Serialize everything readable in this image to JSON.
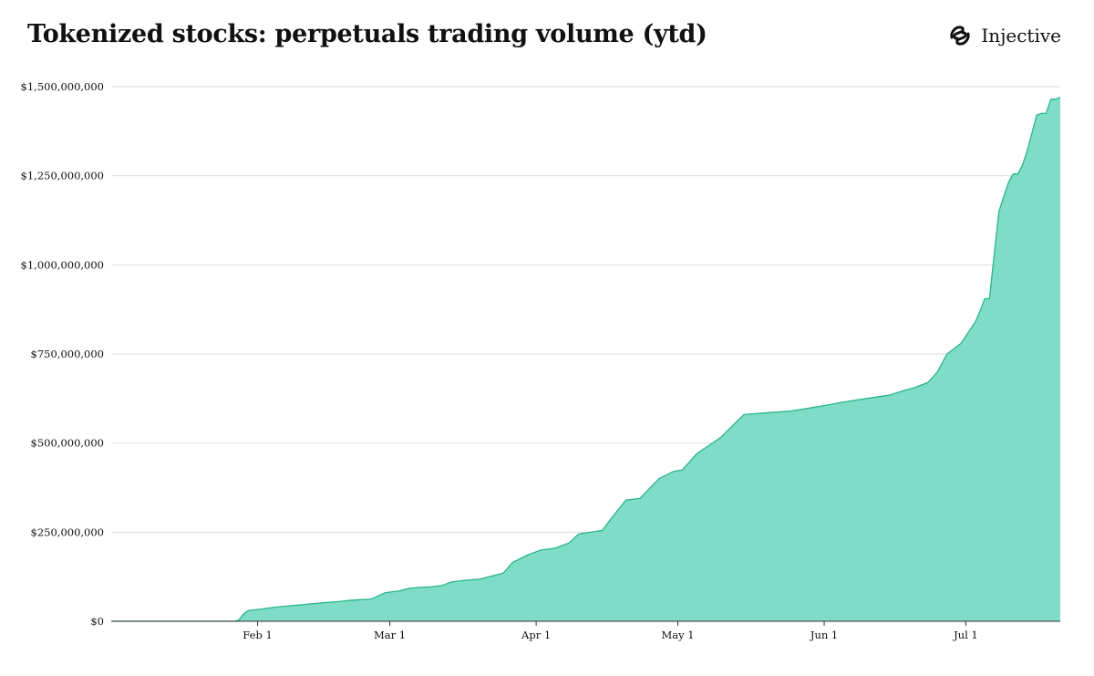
{
  "header": {
    "title": "Tokenized stocks: perpetuals trading volume (ytd)",
    "brand": "Injective"
  },
  "colors": {
    "area_fill": "#7fdcc6",
    "line": "#2bb58d",
    "grid": "#dddddd",
    "text": "#111111"
  },
  "chart_data": {
    "type": "area",
    "title": "Tokenized stocks: perpetuals trading volume (ytd)",
    "xlabel": "",
    "ylabel": "",
    "grid": true,
    "legend": "none",
    "xlim": [
      "2025-01-01",
      "2025-07-21"
    ],
    "ylim": [
      0,
      1500000000
    ],
    "yticks": [
      0,
      250000000,
      500000000,
      750000000,
      1000000000,
      1250000000,
      1500000000
    ],
    "ytick_labels": [
      "$0",
      "$250,000,000",
      "$500,000,000",
      "$750,000,000",
      "$1,000,000,000",
      "$1,250,000,000",
      "$1,500,000,000"
    ],
    "xticks": [
      "2025-02-01",
      "2025-03-01",
      "2025-04-01",
      "2025-05-01",
      "2025-06-01",
      "2025-07-01"
    ],
    "xtick_labels": [
      "Feb 1",
      "Mar 1",
      "Apr 1",
      "May 1",
      "Jun 1",
      "Jul 1"
    ],
    "series": [
      {
        "x": [
          "2025-01-01",
          "2025-01-15",
          "2025-01-27",
          "2025-01-28",
          "2025-01-29",
          "2025-01-30",
          "2025-02-01",
          "2025-02-05",
          "2025-02-10",
          "2025-02-15",
          "2025-02-18",
          "2025-02-20",
          "2025-02-22",
          "2025-02-25",
          "2025-02-28",
          "2025-03-01",
          "2025-03-03",
          "2025-03-05",
          "2025-03-07",
          "2025-03-10",
          "2025-03-12",
          "2025-03-14",
          "2025-03-17",
          "2025-03-20",
          "2025-03-25",
          "2025-03-27",
          "2025-03-30",
          "2025-04-02",
          "2025-04-05",
          "2025-04-08",
          "2025-04-10",
          "2025-04-15",
          "2025-04-17",
          "2025-04-20",
          "2025-04-23",
          "2025-04-27",
          "2025-04-30",
          "2025-05-02",
          "2025-05-05",
          "2025-05-10",
          "2025-05-15",
          "2025-05-20",
          "2025-05-25",
          "2025-06-01",
          "2025-06-05",
          "2025-06-10",
          "2025-06-15",
          "2025-06-18",
          "2025-06-20",
          "2025-06-23",
          "2025-06-25",
          "2025-06-27",
          "2025-06-30",
          "2025-07-03",
          "2025-07-04",
          "2025-07-05",
          "2025-07-06",
          "2025-07-08",
          "2025-07-09",
          "2025-07-10",
          "2025-07-11",
          "2025-07-12",
          "2025-07-13",
          "2025-07-14",
          "2025-07-15",
          "2025-07-16",
          "2025-07-17",
          "2025-07-18",
          "2025-07-19",
          "2025-07-20",
          "2025-07-21"
        ],
        "y": [
          0,
          0,
          0,
          3000000,
          20000000,
          30000000,
          33000000,
          40000000,
          46000000,
          52000000,
          55000000,
          58000000,
          60000000,
          62000000,
          80000000,
          82000000,
          85000000,
          92000000,
          95000000,
          97000000,
          100000000,
          110000000,
          115000000,
          118000000,
          135000000,
          165000000,
          185000000,
          200000000,
          205000000,
          220000000,
          245000000,
          255000000,
          290000000,
          340000000,
          345000000,
          400000000,
          420000000,
          425000000,
          470000000,
          515000000,
          580000000,
          585000000,
          590000000,
          605000000,
          615000000,
          625000000,
          635000000,
          648000000,
          655000000,
          670000000,
          700000000,
          750000000,
          780000000,
          840000000,
          870000000,
          905000000,
          905000000,
          1150000000,
          1190000000,
          1230000000,
          1255000000,
          1255000000,
          1280000000,
          1320000000,
          1370000000,
          1420000000,
          1425000000,
          1425000000,
          1465000000,
          1465000000,
          1470000000
        ]
      }
    ]
  }
}
